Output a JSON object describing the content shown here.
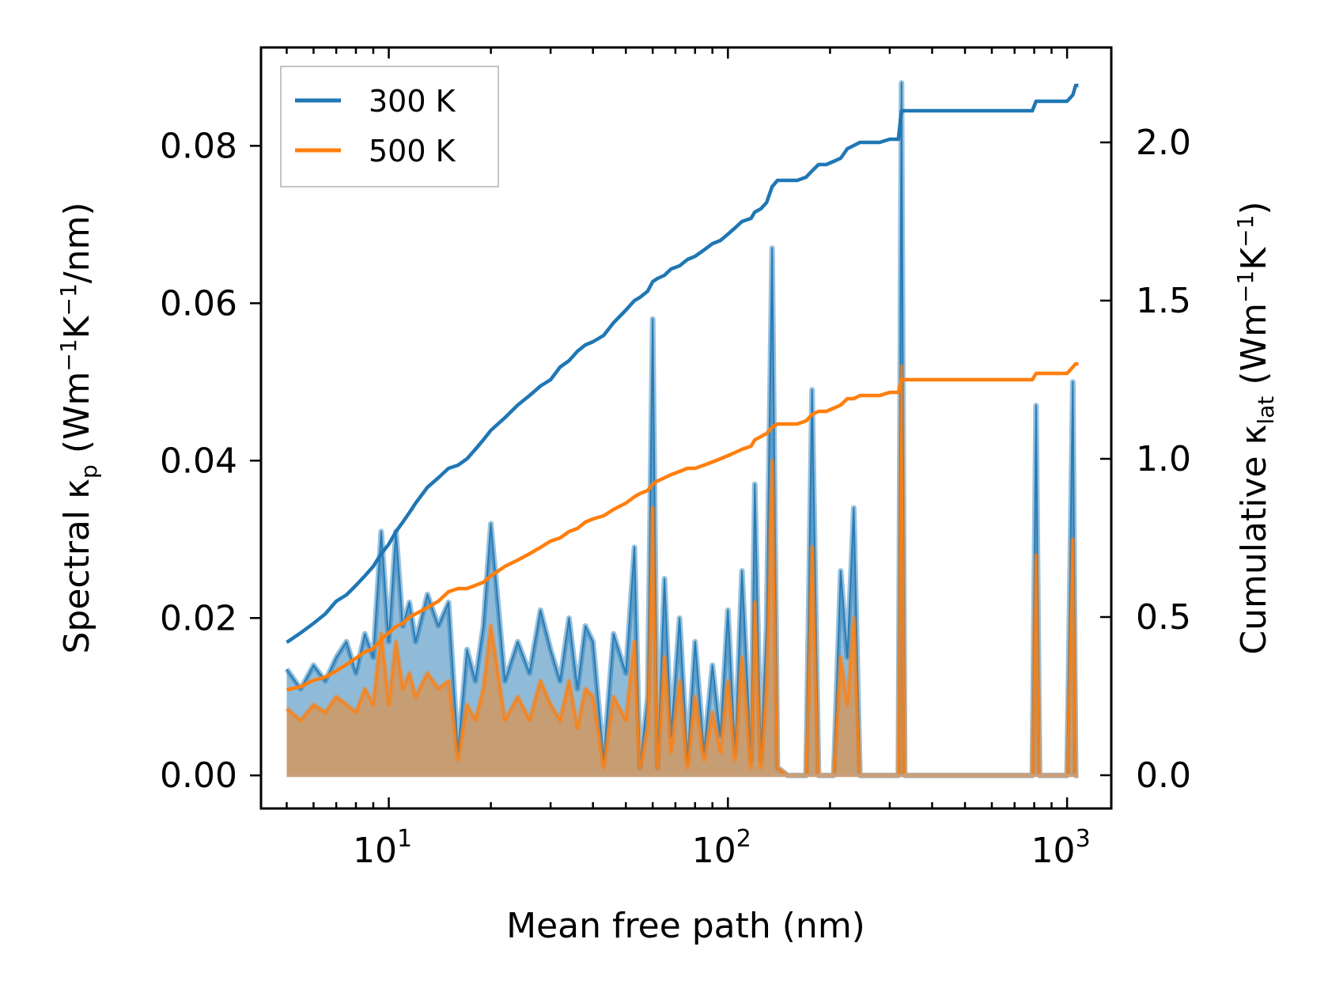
{
  "chart_data": {
    "type": "line",
    "title": "",
    "xlabel": "Mean free path (nm)",
    "ylabel_left_main": "Spectral κ",
    "ylabel_left_sub": "p",
    "ylabel_left_units": "(Wm",
    "ylabel_left_exp1": "−1",
    "ylabel_left_mid": "K",
    "ylabel_left_exp2": "−1",
    "ylabel_left_end": "/nm)",
    "ylabel_right_main": "Cumulative κ",
    "ylabel_right_sub": "lat",
    "ylabel_right_units": "(Wm",
    "ylabel_right_exp1": "−1",
    "ylabel_right_mid": "K",
    "ylabel_right_exp2": "−1",
    "ylabel_right_end": ")",
    "xscale": "log",
    "xlim": [
      4.2,
      1350
    ],
    "ylim_left": [
      -0.0042,
      0.0925
    ],
    "ylim_right": [
      -0.105,
      2.3
    ],
    "x_ticks": [
      {
        "value": 10,
        "base": "10",
        "exp": "1"
      },
      {
        "value": 100,
        "base": "10",
        "exp": "2"
      },
      {
        "value": 1000,
        "base": "10",
        "exp": "3"
      }
    ],
    "y_left_ticks": [
      {
        "value": 0.0,
        "label": "0.00"
      },
      {
        "value": 0.02,
        "label": "0.02"
      },
      {
        "value": 0.04,
        "label": "0.04"
      },
      {
        "value": 0.06,
        "label": "0.06"
      },
      {
        "value": 0.08,
        "label": "0.08"
      }
    ],
    "y_right_ticks": [
      {
        "value": 0.0,
        "label": "0.0"
      },
      {
        "value": 0.5,
        "label": "0.5"
      },
      {
        "value": 1.0,
        "label": "1.0"
      },
      {
        "value": 1.5,
        "label": "1.5"
      },
      {
        "value": 2.0,
        "label": "2.0"
      }
    ],
    "legend": {
      "placement": "top-left"
    },
    "colors": {
      "series_300": "#1f77b4",
      "series_500": "#ff7f0e",
      "overlap_fill": "#c89b72"
    },
    "spectral_x": [
      5.0,
      5.5,
      6.0,
      6.5,
      7.0,
      7.5,
      8.0,
      8.5,
      9.0,
      9.5,
      10.0,
      10.5,
      11.0,
      11.5,
      12.0,
      13.0,
      14.0,
      15.0,
      16.0,
      17.0,
      18.0,
      19.0,
      20.0,
      22.0,
      24.0,
      26.0,
      28.0,
      30.0,
      32.0,
      34.0,
      36.0,
      38.0,
      40.0,
      43.0,
      46.0,
      50.0,
      53.0,
      55.0,
      58.0,
      60.0,
      62.0,
      65.0,
      68.0,
      72.0,
      76.0,
      80.0,
      85.0,
      90.0,
      95.0,
      100.0,
      105.0,
      110.0,
      117.0,
      120.0,
      125.0,
      130.0,
      135.0,
      140.0,
      150.0,
      160.0,
      170.0,
      177.0,
      185.0,
      195.0,
      205.0,
      215.0,
      225.0,
      235.0,
      245.0,
      255.0,
      265.0,
      280.0,
      300.0,
      318.0,
      325.0,
      332.0,
      340.0,
      360.0,
      400.0,
      500.0,
      700.0,
      790.0,
      810.0,
      830.0,
      850.0,
      950.0,
      1000.0,
      1040.0,
      1060.0,
      1080.0
    ],
    "series": [
      {
        "name": "300 K",
        "spectral": [
          0.0135,
          0.011,
          0.014,
          0.012,
          0.015,
          0.017,
          0.013,
          0.018,
          0.015,
          0.031,
          0.017,
          0.031,
          0.019,
          0.022,
          0.017,
          0.023,
          0.019,
          0.022,
          0.003,
          0.016,
          0.012,
          0.019,
          0.032,
          0.012,
          0.017,
          0.013,
          0.021,
          0.016,
          0.012,
          0.02,
          0.011,
          0.019,
          0.017,
          0.002,
          0.018,
          0.013,
          0.029,
          0.001,
          0.01,
          0.058,
          0.001,
          0.025,
          0.005,
          0.02,
          0.002,
          0.017,
          0.003,
          0.014,
          0.005,
          0.021,
          0.003,
          0.026,
          0.002,
          0.037,
          0.002,
          0.019,
          0.067,
          0.001,
          0.0,
          0.0,
          0.0,
          0.049,
          0.0,
          0.0,
          0.0,
          0.026,
          0.015,
          0.034,
          0.0,
          0.0,
          0.0,
          0.0,
          0.0,
          0.0,
          0.088,
          0.0,
          0.0,
          0.0,
          0.0,
          0.0,
          0.0,
          0.0,
          0.047,
          0.0,
          0.0,
          0.0,
          0.0,
          0.05,
          0.0,
          0.0
        ],
        "cumulative_x": [
          5.0,
          5.5,
          6.0,
          6.5,
          7.0,
          7.5,
          8.0,
          8.5,
          9.0,
          9.5,
          10.0,
          10.5,
          11.0,
          11.5,
          12.0,
          13.0,
          14.0,
          15.0,
          16.0,
          17.0,
          18.0,
          19.0,
          20.0,
          22.0,
          24.0,
          26.0,
          28.0,
          30.0,
          32.0,
          34.0,
          36.0,
          38.0,
          40.0,
          43.0,
          46.0,
          50.0,
          53.0,
          55.0,
          58.0,
          60.0,
          62.0,
          65.0,
          68.0,
          72.0,
          76.0,
          80.0,
          85.0,
          90.0,
          95.0,
          100.0,
          105.0,
          110.0,
          117.0,
          120.0,
          125.0,
          130.0,
          135.0,
          140.0,
          150.0,
          160.0,
          170.0,
          177.0,
          185.0,
          195.0,
          205.0,
          215.0,
          225.0,
          235.0,
          245.0,
          255.0,
          265.0,
          280.0,
          300.0,
          318.0,
          325.0,
          332.0,
          340.0,
          360.0,
          400.0,
          500.0,
          700.0,
          790.0,
          810.0,
          830.0,
          850.0,
          950.0,
          1000.0,
          1040.0,
          1060.0,
          1080.0
        ],
        "cumulative": [
          0.42,
          0.45,
          0.48,
          0.51,
          0.55,
          0.57,
          0.6,
          0.63,
          0.66,
          0.7,
          0.73,
          0.77,
          0.8,
          0.83,
          0.86,
          0.91,
          0.94,
          0.97,
          0.98,
          1.0,
          1.03,
          1.06,
          1.09,
          1.13,
          1.17,
          1.2,
          1.23,
          1.25,
          1.29,
          1.31,
          1.34,
          1.36,
          1.37,
          1.39,
          1.43,
          1.47,
          1.5,
          1.51,
          1.53,
          1.56,
          1.57,
          1.58,
          1.6,
          1.61,
          1.63,
          1.64,
          1.66,
          1.68,
          1.69,
          1.71,
          1.73,
          1.75,
          1.76,
          1.78,
          1.79,
          1.81,
          1.86,
          1.88,
          1.88,
          1.88,
          1.89,
          1.91,
          1.93,
          1.93,
          1.94,
          1.95,
          1.98,
          1.99,
          2.0,
          2.0,
          2.0,
          2.0,
          2.01,
          2.01,
          2.1,
          2.1,
          2.1,
          2.1,
          2.1,
          2.1,
          2.1,
          2.1,
          2.13,
          2.13,
          2.13,
          2.13,
          2.13,
          2.15,
          2.18,
          2.18
        ]
      },
      {
        "name": "500 K",
        "spectral": [
          0.0085,
          0.007,
          0.009,
          0.008,
          0.01,
          0.009,
          0.008,
          0.011,
          0.009,
          0.018,
          0.009,
          0.017,
          0.011,
          0.013,
          0.01,
          0.013,
          0.011,
          0.012,
          0.002,
          0.009,
          0.007,
          0.011,
          0.019,
          0.007,
          0.01,
          0.007,
          0.012,
          0.009,
          0.007,
          0.012,
          0.006,
          0.011,
          0.01,
          0.001,
          0.01,
          0.007,
          0.017,
          0.001,
          0.006,
          0.034,
          0.001,
          0.015,
          0.003,
          0.012,
          0.001,
          0.01,
          0.002,
          0.008,
          0.003,
          0.012,
          0.002,
          0.015,
          0.001,
          0.022,
          0.001,
          0.011,
          0.04,
          0.001,
          0.0,
          0.0,
          0.0,
          0.029,
          0.0,
          0.0,
          0.0,
          0.015,
          0.009,
          0.02,
          0.0,
          0.0,
          0.0,
          0.0,
          0.0,
          0.0,
          0.052,
          0.0,
          0.0,
          0.0,
          0.0,
          0.0,
          0.0,
          0.0,
          0.028,
          0.0,
          0.0,
          0.0,
          0.0,
          0.03,
          0.0,
          0.0
        ],
        "cumulative": [
          0.27,
          0.28,
          0.3,
          0.31,
          0.33,
          0.35,
          0.37,
          0.39,
          0.4,
          0.43,
          0.45,
          0.47,
          0.48,
          0.5,
          0.51,
          0.53,
          0.55,
          0.58,
          0.59,
          0.59,
          0.6,
          0.61,
          0.63,
          0.66,
          0.68,
          0.7,
          0.72,
          0.74,
          0.75,
          0.77,
          0.78,
          0.8,
          0.81,
          0.82,
          0.84,
          0.86,
          0.88,
          0.89,
          0.9,
          0.92,
          0.93,
          0.94,
          0.95,
          0.96,
          0.97,
          0.97,
          0.98,
          0.99,
          1.0,
          1.01,
          1.02,
          1.03,
          1.04,
          1.06,
          1.07,
          1.08,
          1.1,
          1.11,
          1.11,
          1.11,
          1.12,
          1.14,
          1.15,
          1.15,
          1.16,
          1.17,
          1.19,
          1.19,
          1.2,
          1.2,
          1.2,
          1.2,
          1.21,
          1.21,
          1.25,
          1.25,
          1.25,
          1.25,
          1.25,
          1.25,
          1.25,
          1.25,
          1.27,
          1.27,
          1.27,
          1.27,
          1.27,
          1.29,
          1.3,
          1.3
        ]
      }
    ]
  }
}
